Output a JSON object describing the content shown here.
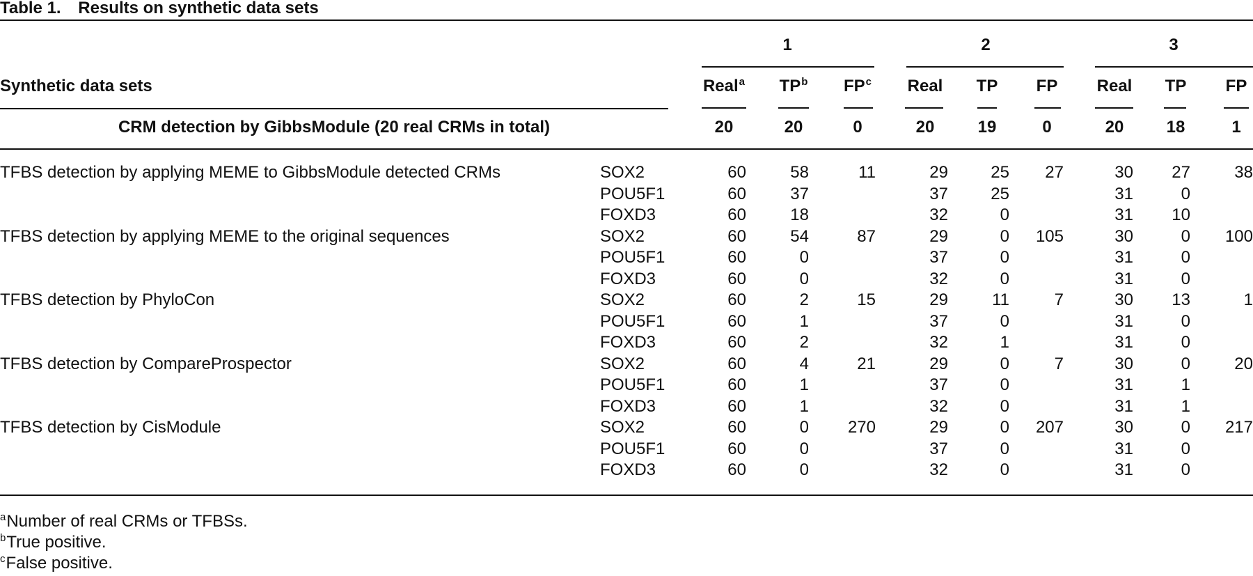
{
  "caption": {
    "label": "Table 1.",
    "title": "Results on synthetic data sets"
  },
  "groups": [
    "1",
    "2",
    "3"
  ],
  "header": {
    "row_label": "Synthetic data sets",
    "cols": [
      {
        "text": "Real",
        "sup": "a"
      },
      {
        "text": "TP",
        "sup": "b"
      },
      {
        "text": "FP",
        "sup": "c"
      },
      {
        "text": "Real",
        "sup": ""
      },
      {
        "text": "TP",
        "sup": ""
      },
      {
        "text": "FP",
        "sup": ""
      },
      {
        "text": "Real",
        "sup": ""
      },
      {
        "text": "TP",
        "sup": ""
      },
      {
        "text": "FP",
        "sup": ""
      }
    ]
  },
  "crm_row": {
    "label": "CRM detection by GibbsModule (20 real CRMs in total)",
    "values": [
      "20",
      "20",
      "0",
      "20",
      "19",
      "0",
      "20",
      "18",
      "1"
    ]
  },
  "methods": [
    {
      "label": "TFBS detection by applying MEME to GibbsModule detected CRMs",
      "rows": [
        {
          "tf": "SOX2",
          "values": [
            "60",
            "58",
            "11",
            "29",
            "25",
            "27",
            "30",
            "27",
            "38"
          ]
        },
        {
          "tf": "POU5F1",
          "values": [
            "60",
            "37",
            "",
            "37",
            "25",
            "",
            "31",
            "0",
            ""
          ]
        },
        {
          "tf": "FOXD3",
          "values": [
            "60",
            "18",
            "",
            "32",
            "0",
            "",
            "31",
            "10",
            ""
          ]
        }
      ]
    },
    {
      "label": "TFBS detection by applying MEME to the original sequences",
      "rows": [
        {
          "tf": "SOX2",
          "values": [
            "60",
            "54",
            "87",
            "29",
            "0",
            "105",
            "30",
            "0",
            "100"
          ]
        },
        {
          "tf": "POU5F1",
          "values": [
            "60",
            "0",
            "",
            "37",
            "0",
            "",
            "31",
            "0",
            ""
          ]
        },
        {
          "tf": "FOXD3",
          "values": [
            "60",
            "0",
            "",
            "32",
            "0",
            "",
            "31",
            "0",
            ""
          ]
        }
      ]
    },
    {
      "label": "TFBS detection by PhyloCon",
      "rows": [
        {
          "tf": "SOX2",
          "values": [
            "60",
            "2",
            "15",
            "29",
            "11",
            "7",
            "30",
            "13",
            "1"
          ]
        },
        {
          "tf": "POU5F1",
          "values": [
            "60",
            "1",
            "",
            "37",
            "0",
            "",
            "31",
            "0",
            ""
          ]
        },
        {
          "tf": "FOXD3",
          "values": [
            "60",
            "2",
            "",
            "32",
            "1",
            "",
            "31",
            "0",
            ""
          ]
        }
      ]
    },
    {
      "label": "TFBS detection by CompareProspector",
      "rows": [
        {
          "tf": "SOX2",
          "values": [
            "60",
            "4",
            "21",
            "29",
            "0",
            "7",
            "30",
            "0",
            "20"
          ]
        },
        {
          "tf": "POU5F1",
          "values": [
            "60",
            "1",
            "",
            "37",
            "0",
            "",
            "31",
            "1",
            ""
          ]
        },
        {
          "tf": "FOXD3",
          "values": [
            "60",
            "1",
            "",
            "32",
            "0",
            "",
            "31",
            "1",
            ""
          ]
        }
      ]
    },
    {
      "label": "TFBS detection by CisModule",
      "rows": [
        {
          "tf": "SOX2",
          "values": [
            "60",
            "0",
            "270",
            "29",
            "0",
            "207",
            "30",
            "0",
            "217"
          ]
        },
        {
          "tf": "POU5F1",
          "values": [
            "60",
            "0",
            "",
            "37",
            "0",
            "",
            "31",
            "0",
            ""
          ]
        },
        {
          "tf": "FOXD3",
          "values": [
            "60",
            "0",
            "",
            "32",
            "0",
            "",
            "31",
            "0",
            ""
          ]
        }
      ]
    }
  ],
  "footnotes": [
    {
      "mark": "a",
      "text": "Number of real CRMs or TFBSs."
    },
    {
      "mark": "b",
      "text": "True positive."
    },
    {
      "mark": "c",
      "text": "False positive."
    }
  ]
}
